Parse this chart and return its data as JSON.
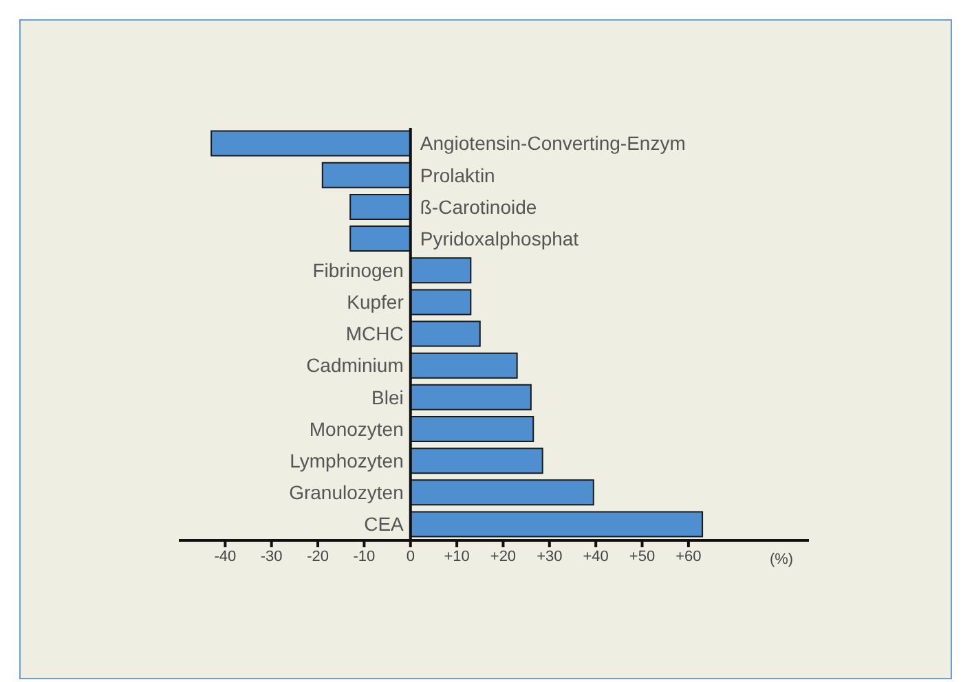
{
  "chart_data": {
    "type": "bar",
    "orientation": "horizontal",
    "categories": [
      "Angiotensin-Converting-Enzym",
      "Prolaktin",
      "ß-Carotinoide",
      "Pyridoxalphosphat",
      "Fibrinogen",
      "Kupfer",
      "MCHC",
      "Cadminium",
      "Blei",
      "Monozyten",
      "Lymphozyten",
      "Granulozyten",
      "CEA"
    ],
    "values": [
      -43,
      -19,
      -13,
      -13,
      13,
      13,
      15,
      23,
      26,
      26.5,
      28.5,
      39.5,
      63
    ],
    "color": "#4f8fcf",
    "xlabel": "(%)",
    "xlim": [
      -50,
      86
    ],
    "xticks": [
      -40,
      -30,
      -20,
      -10,
      0,
      {
        "value": 10,
        "label": "+10"
      },
      {
        "value": 20,
        "label": "+20"
      },
      {
        "value": 30,
        "label": "+30"
      },
      {
        "value": 40,
        "label": "+40"
      },
      {
        "value": 50,
        "label": "+50"
      },
      {
        "value": 60,
        "label": "+60"
      }
    ],
    "grid": false,
    "legend": false
  }
}
